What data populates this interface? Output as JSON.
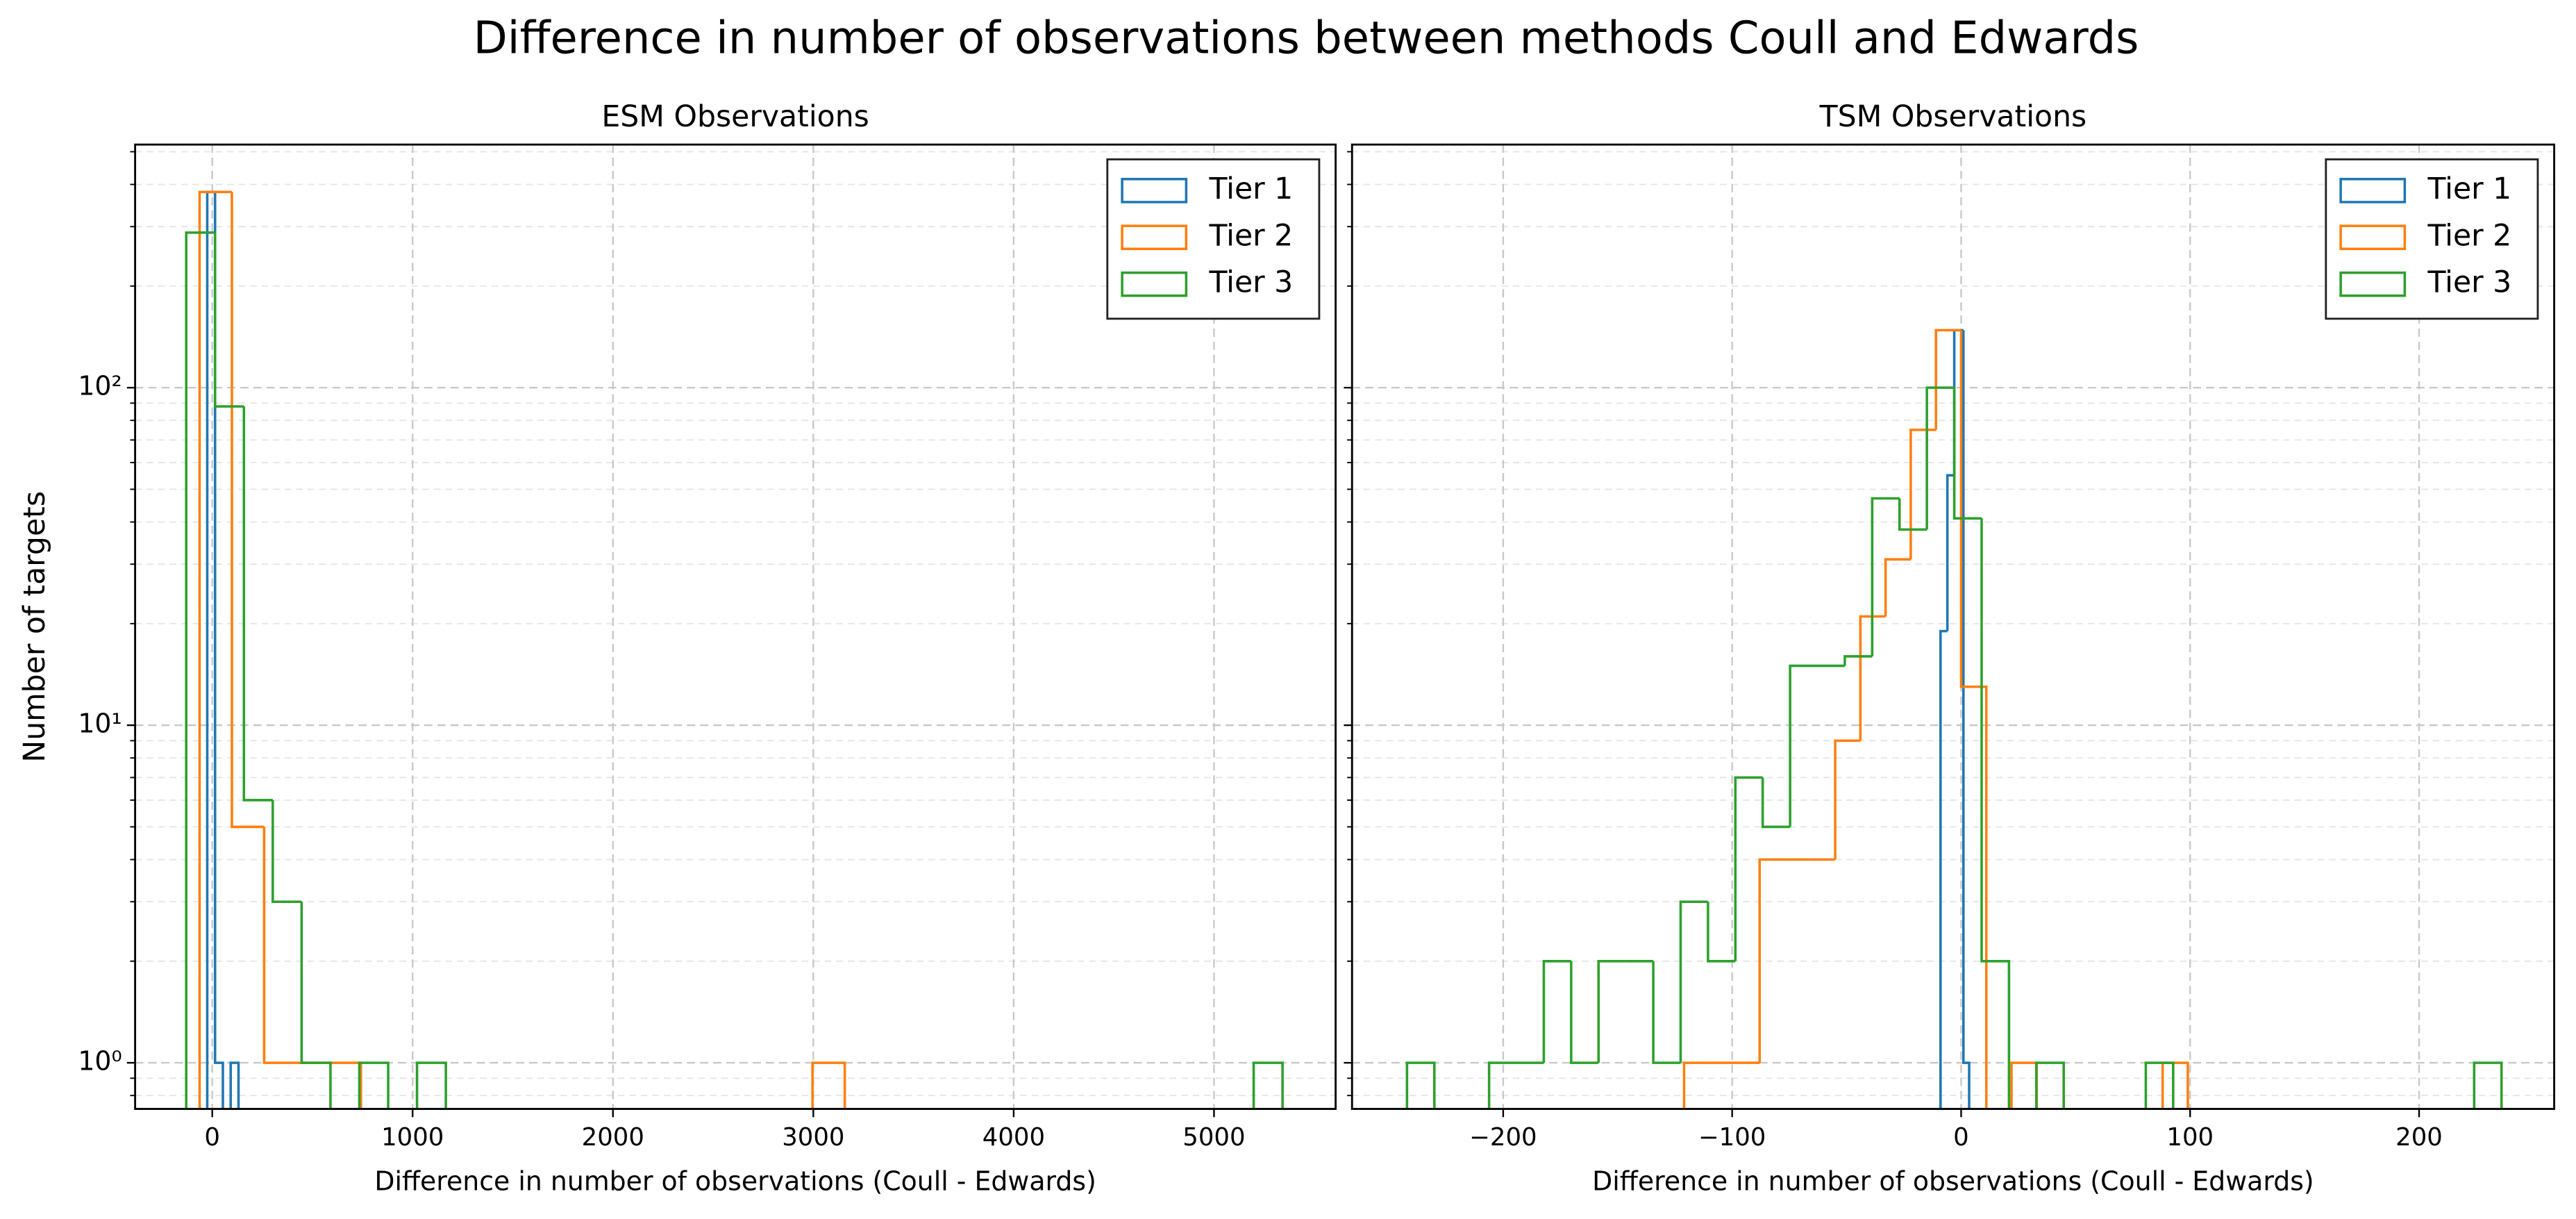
{
  "title": "Difference in number of observations between methods Coull and Edwards",
  "chart_data": [
    {
      "type": "histogram",
      "title": "ESM Observations",
      "xlabel": "Difference in number of observations (Coull - Edwards)",
      "ylabel": "Number of targets",
      "log_y": true,
      "grid": true,
      "legend": "upper right",
      "xlim": [
        -385,
        5607
      ],
      "ylim": [
        0.73,
        525
      ],
      "xticks": [
        0,
        1000,
        2000,
        3000,
        4000,
        5000
      ],
      "yticks": [
        {
          "value": 1,
          "label": "10⁰"
        },
        {
          "value": 10,
          "label": "10¹"
        },
        {
          "value": 100,
          "label": "10²"
        }
      ],
      "yminorticks": [
        0.8,
        0.9,
        2,
        3,
        4,
        5,
        6,
        7,
        8,
        9,
        20,
        30,
        40,
        50,
        60,
        70,
        80,
        90,
        200,
        300,
        400,
        500
      ],
      "series": [
        {
          "name": "Tier 1",
          "color": "#1f77b4",
          "bins": [
            -25,
            14,
            53,
            92,
            131
          ],
          "values": [
            380,
            1,
            0,
            1
          ]
        },
        {
          "name": "Tier 2",
          "color": "#ff7f0e",
          "bins": [
            -63,
            98,
            259,
            420,
            581,
            742,
            903,
            1064,
            1225,
            1386,
            1547,
            1708,
            1869,
            2030,
            2191,
            2352,
            2513,
            2674,
            2835,
            2996,
            3157
          ],
          "values": [
            380,
            5,
            1,
            1,
            1,
            0,
            0,
            0,
            0,
            0,
            0,
            0,
            0,
            0,
            0,
            0,
            0,
            0,
            0,
            1
          ]
        },
        {
          "name": "Tier 3",
          "color": "#2ca02c",
          "bins": [
            -130,
            14,
            158,
            302,
            446,
            590,
            734,
            878,
            1022,
            1166,
            1310,
            1454,
            1598,
            1742,
            1886,
            2030,
            2174,
            2318,
            2462,
            2606,
            2750,
            2894,
            3038,
            3182,
            3326,
            3470,
            3614,
            3758,
            3902,
            4046,
            4190,
            4334,
            4478,
            4622,
            4766,
            4910,
            5054,
            5198,
            5342
          ],
          "values": [
            288,
            88,
            6,
            3,
            1,
            0,
            1,
            0,
            1,
            0,
            0,
            0,
            0,
            0,
            0,
            0,
            0,
            0,
            0,
            0,
            0,
            0,
            0,
            0,
            0,
            0,
            0,
            0,
            0,
            0,
            0,
            0,
            0,
            0,
            0,
            0,
            0,
            1
          ]
        }
      ]
    },
    {
      "type": "histogram",
      "title": "TSM Observations",
      "xlabel": "Difference in number of observations (Coull - Edwards)",
      "log_y": true,
      "grid": true,
      "legend": "upper right",
      "xlim": [
        -266,
        259
      ],
      "ylim": [
        0.73,
        525
      ],
      "xticks": [
        {
          "value": -200,
          "label": "−200"
        },
        {
          "value": -100,
          "label": "−100"
        },
        0,
        100,
        200
      ],
      "yticks": [
        1,
        10,
        100
      ],
      "yminorticks": [
        0.8,
        0.9,
        2,
        3,
        4,
        5,
        6,
        7,
        8,
        9,
        20,
        30,
        40,
        50,
        60,
        70,
        80,
        90,
        200,
        300,
        400,
        500
      ],
      "series": [
        {
          "name": "Tier 1",
          "color": "#1f77b4",
          "bins": [
            -9,
            -6,
            -3,
            1,
            3.5
          ],
          "values": [
            19,
            55,
            148,
            1
          ]
        },
        {
          "name": "Tier 2",
          "color": "#ff7f0e",
          "bins": [
            -121,
            -110,
            -99,
            -88,
            -77,
            -66,
            -55,
            -44,
            -33,
            -22,
            -11,
            0,
            11,
            22,
            33,
            44,
            55,
            66,
            77,
            88,
            99
          ],
          "values": [
            1,
            1,
            1,
            4,
            4,
            4,
            9,
            21,
            31,
            75,
            148,
            13,
            0,
            1,
            0,
            0,
            0,
            0,
            0,
            1
          ]
        },
        {
          "name": "Tier 3",
          "color": "#2ca02c",
          "bins": [
            -242,
            -230.05,
            -218.1,
            -206.15,
            -194.2,
            -182.25,
            -170.3,
            -158.35,
            -146.4,
            -134.45,
            -122.5,
            -110.55,
            -98.6,
            -86.65,
            -74.7,
            -62.75,
            -50.8,
            -38.85,
            -26.9,
            -14.95,
            -3,
            8.95,
            20.9,
            32.85,
            44.8,
            56.75,
            68.7,
            80.65,
            92.6,
            104.55,
            116.5,
            128.45,
            140.4,
            152.35,
            164.3,
            176.25,
            188.2,
            200.15,
            212.1,
            224.05,
            236
          ],
          "values": [
            1,
            0,
            0,
            1,
            1,
            2,
            1,
            2,
            2,
            1,
            3,
            2,
            7,
            5,
            15,
            15,
            16,
            47,
            38,
            100,
            41,
            2,
            0,
            1,
            0,
            0,
            0,
            1,
            0,
            0,
            0,
            0,
            0,
            0,
            0,
            0,
            0,
            0,
            0,
            1
          ]
        }
      ]
    }
  ]
}
